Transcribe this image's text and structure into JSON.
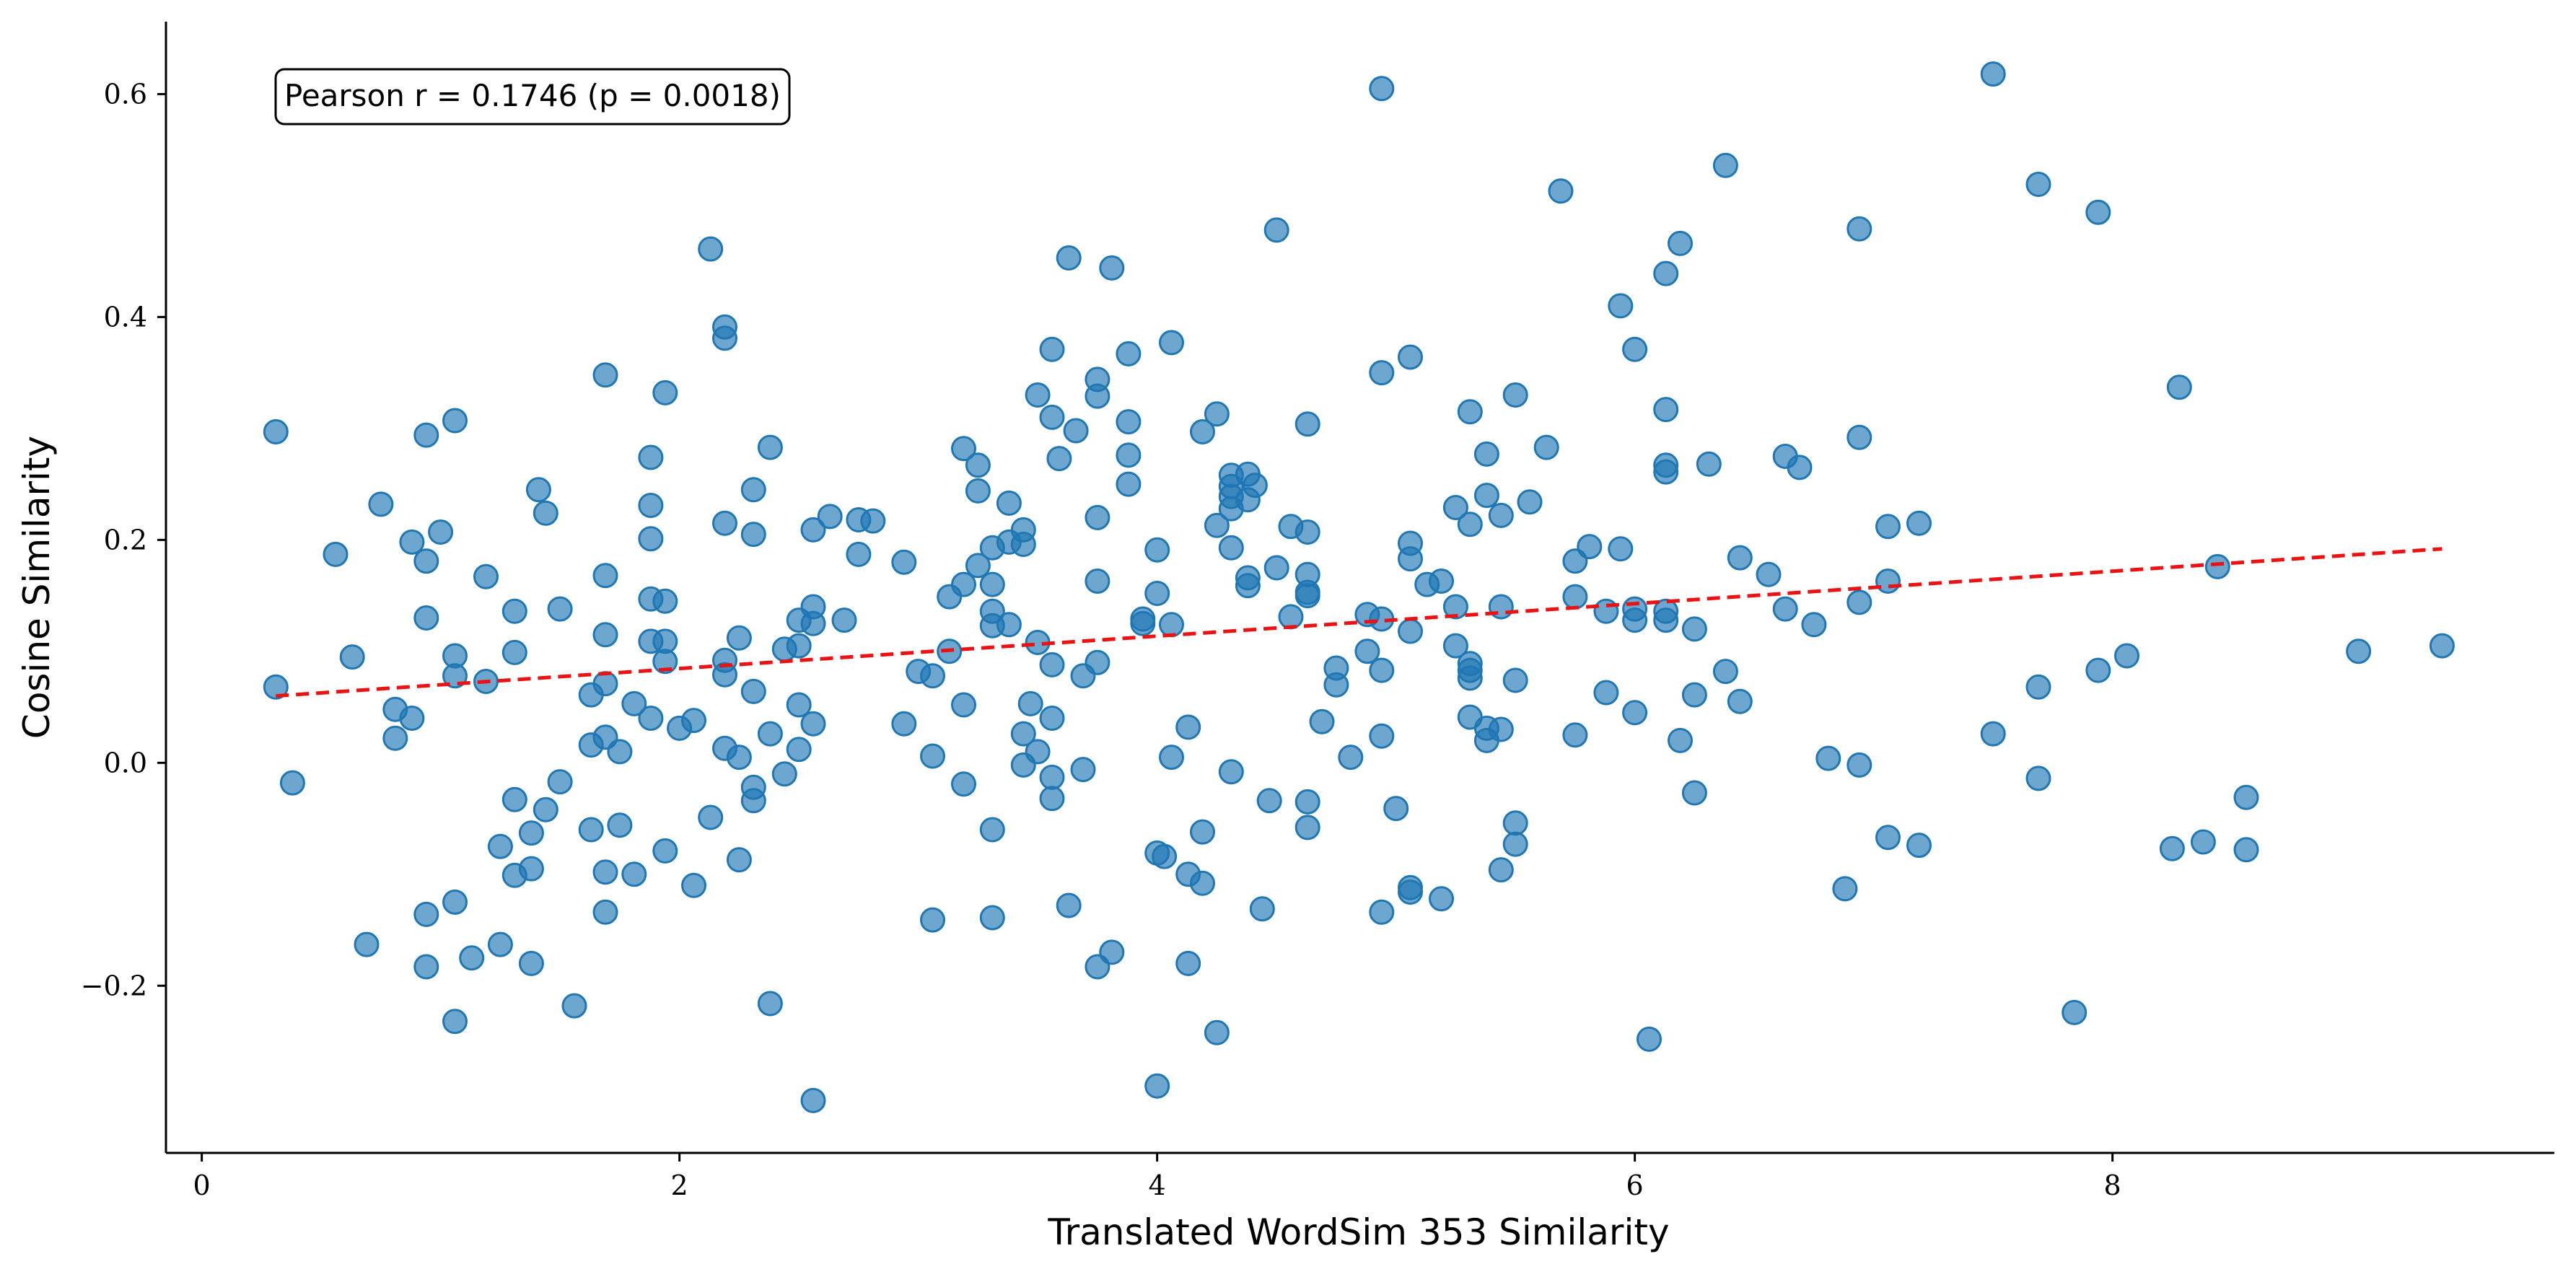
{
  "chart_data": {
    "type": "scatter",
    "xlabel": "Translated WordSim 353 Similarity",
    "ylabel": "Cosine Similarity",
    "xlim": [
      -0.15,
      9.85
    ],
    "ylim": [
      -0.35,
      0.665
    ],
    "x_ticks": [
      0,
      2,
      4,
      6,
      8
    ],
    "x_tick_labels": [
      "0",
      "2",
      "4",
      "6",
      "8"
    ],
    "y_ticks": [
      -0.2,
      0.0,
      0.2,
      0.4,
      0.6
    ],
    "y_tick_labels": [
      "−0.2",
      "0.0",
      "0.2",
      "0.4",
      "0.6"
    ],
    "grid": false,
    "annotation": "Pearson r = 0.1746 (p = 0.0018)",
    "point_color": "#1f77b4",
    "point_opacity": 0.65,
    "trend_color": "#ee1111",
    "trend_line": {
      "x": [
        0.31,
        9.38
      ],
      "y": [
        0.06,
        0.192
      ]
    },
    "points": [
      [
        0.31,
        0.297
      ],
      [
        0.31,
        0.068
      ],
      [
        0.38,
        -0.018
      ],
      [
        0.56,
        0.187
      ],
      [
        0.63,
        0.095
      ],
      [
        0.69,
        -0.163
      ],
      [
        0.75,
        0.232
      ],
      [
        0.81,
        0.048
      ],
      [
        0.81,
        0.022
      ],
      [
        0.88,
        0.198
      ],
      [
        0.88,
        0.04
      ],
      [
        0.94,
        0.294
      ],
      [
        0.94,
        0.181
      ],
      [
        0.94,
        0.13
      ],
      [
        0.94,
        -0.136
      ],
      [
        0.94,
        -0.183
      ],
      [
        1.0,
        0.207
      ],
      [
        1.06,
        0.307
      ],
      [
        1.06,
        0.096
      ],
      [
        1.06,
        0.078
      ],
      [
        1.06,
        -0.125
      ],
      [
        1.06,
        -0.232
      ],
      [
        1.13,
        -0.175
      ],
      [
        1.19,
        0.167
      ],
      [
        1.19,
        0.073
      ],
      [
        1.25,
        -0.075
      ],
      [
        1.25,
        -0.163
      ],
      [
        1.31,
        0.136
      ],
      [
        1.31,
        0.099
      ],
      [
        1.31,
        -0.033
      ],
      [
        1.31,
        -0.101
      ],
      [
        1.38,
        -0.063
      ],
      [
        1.38,
        -0.095
      ],
      [
        1.38,
        -0.18
      ],
      [
        1.41,
        0.245
      ],
      [
        1.44,
        0.224
      ],
      [
        1.44,
        -0.042
      ],
      [
        1.5,
        0.138
      ],
      [
        1.5,
        -0.017
      ],
      [
        1.56,
        -0.218
      ],
      [
        1.63,
        0.061
      ],
      [
        1.63,
        0.016
      ],
      [
        1.63,
        -0.06
      ],
      [
        1.69,
        0.348
      ],
      [
        1.69,
        0.168
      ],
      [
        1.69,
        0.115
      ],
      [
        1.69,
        0.071
      ],
      [
        1.69,
        0.023
      ],
      [
        1.69,
        -0.098
      ],
      [
        1.69,
        -0.134
      ],
      [
        1.75,
        0.01
      ],
      [
        1.75,
        -0.056
      ],
      [
        1.81,
        0.053
      ],
      [
        1.81,
        -0.1
      ],
      [
        1.88,
        0.274
      ],
      [
        1.88,
        0.231
      ],
      [
        1.88,
        0.201
      ],
      [
        1.88,
        0.147
      ],
      [
        1.88,
        0.109
      ],
      [
        1.88,
        0.04
      ],
      [
        1.94,
        0.332
      ],
      [
        1.94,
        0.145
      ],
      [
        1.94,
        0.109
      ],
      [
        1.94,
        0.091
      ],
      [
        1.94,
        -0.079
      ],
      [
        2.0,
        0.031
      ],
      [
        2.06,
        0.038
      ],
      [
        2.06,
        -0.11
      ],
      [
        2.13,
        0.461
      ],
      [
        2.13,
        -0.049
      ],
      [
        2.19,
        0.391
      ],
      [
        2.19,
        0.381
      ],
      [
        2.19,
        0.215
      ],
      [
        2.19,
        0.092
      ],
      [
        2.19,
        0.079
      ],
      [
        2.19,
        0.013
      ],
      [
        2.25,
        0.112
      ],
      [
        2.25,
        0.005
      ],
      [
        2.25,
        -0.087
      ],
      [
        2.31,
        0.245
      ],
      [
        2.31,
        0.205
      ],
      [
        2.31,
        0.064
      ],
      [
        2.31,
        -0.022
      ],
      [
        2.31,
        -0.034
      ],
      [
        2.38,
        0.283
      ],
      [
        2.38,
        0.026
      ],
      [
        2.38,
        -0.216
      ],
      [
        2.44,
        0.102
      ],
      [
        2.44,
        -0.01
      ],
      [
        2.5,
        0.128
      ],
      [
        2.5,
        0.105
      ],
      [
        2.5,
        0.052
      ],
      [
        2.5,
        0.012
      ],
      [
        2.56,
        0.209
      ],
      [
        2.56,
        0.14
      ],
      [
        2.56,
        0.125
      ],
      [
        2.56,
        0.035
      ],
      [
        2.56,
        -0.303
      ],
      [
        2.63,
        0.221
      ],
      [
        2.69,
        0.128
      ],
      [
        2.75,
        0.218
      ],
      [
        2.75,
        0.187
      ],
      [
        2.81,
        0.217
      ],
      [
        2.94,
        0.18
      ],
      [
        2.94,
        0.035
      ],
      [
        3.0,
        0.082
      ],
      [
        3.06,
        0.078
      ],
      [
        3.06,
        0.006
      ],
      [
        3.06,
        -0.141
      ],
      [
        3.13,
        0.149
      ],
      [
        3.13,
        0.1
      ],
      [
        3.19,
        0.282
      ],
      [
        3.19,
        0.16
      ],
      [
        3.19,
        0.052
      ],
      [
        3.19,
        -0.019
      ],
      [
        3.25,
        0.267
      ],
      [
        3.25,
        0.244
      ],
      [
        3.25,
        0.177
      ],
      [
        3.31,
        0.193
      ],
      [
        3.31,
        0.16
      ],
      [
        3.31,
        0.136
      ],
      [
        3.31,
        0.123
      ],
      [
        3.31,
        -0.06
      ],
      [
        3.31,
        -0.139
      ],
      [
        3.38,
        0.233
      ],
      [
        3.38,
        0.198
      ],
      [
        3.38,
        0.124
      ],
      [
        3.44,
        0.209
      ],
      [
        3.44,
        0.196
      ],
      [
        3.44,
        0.026
      ],
      [
        3.44,
        -0.002
      ],
      [
        3.47,
        0.053
      ],
      [
        3.5,
        0.33
      ],
      [
        3.5,
        0.108
      ],
      [
        3.5,
        0.01
      ],
      [
        3.56,
        0.371
      ],
      [
        3.56,
        0.31
      ],
      [
        3.56,
        0.088
      ],
      [
        3.56,
        0.04
      ],
      [
        3.56,
        -0.013
      ],
      [
        3.56,
        -0.032
      ],
      [
        3.59,
        0.273
      ],
      [
        3.63,
        0.453
      ],
      [
        3.63,
        -0.128
      ],
      [
        3.66,
        0.298
      ],
      [
        3.69,
        0.078
      ],
      [
        3.69,
        -0.006
      ],
      [
        3.75,
        0.344
      ],
      [
        3.75,
        0.329
      ],
      [
        3.75,
        0.22
      ],
      [
        3.75,
        0.163
      ],
      [
        3.75,
        0.09
      ],
      [
        3.75,
        -0.183
      ],
      [
        3.81,
        0.444
      ],
      [
        3.81,
        -0.17
      ],
      [
        3.88,
        0.367
      ],
      [
        3.88,
        0.306
      ],
      [
        3.88,
        0.276
      ],
      [
        3.88,
        0.25
      ],
      [
        3.94,
        0.129
      ],
      [
        3.94,
        0.125
      ],
      [
        4.0,
        0.191
      ],
      [
        4.0,
        0.152
      ],
      [
        4.0,
        -0.081
      ],
      [
        4.0,
        -0.29
      ],
      [
        4.03,
        -0.084
      ],
      [
        4.06,
        0.377
      ],
      [
        4.06,
        0.124
      ],
      [
        4.06,
        0.005
      ],
      [
        4.13,
        0.032
      ],
      [
        4.13,
        -0.1
      ],
      [
        4.13,
        -0.18
      ],
      [
        4.19,
        0.297
      ],
      [
        4.19,
        -0.062
      ],
      [
        4.19,
        -0.108
      ],
      [
        4.25,
        0.313
      ],
      [
        4.25,
        0.213
      ],
      [
        4.25,
        -0.242
      ],
      [
        4.31,
        0.258
      ],
      [
        4.31,
        0.248
      ],
      [
        4.31,
        0.239
      ],
      [
        4.31,
        0.228
      ],
      [
        4.31,
        0.193
      ],
      [
        4.31,
        -0.008
      ],
      [
        4.38,
        0.259
      ],
      [
        4.38,
        0.236
      ],
      [
        4.38,
        0.166
      ],
      [
        4.38,
        0.159
      ],
      [
        4.41,
        0.249
      ],
      [
        4.44,
        -0.131
      ],
      [
        4.47,
        -0.034
      ],
      [
        4.5,
        0.478
      ],
      [
        4.5,
        0.175
      ],
      [
        4.56,
        0.212
      ],
      [
        4.56,
        0.131
      ],
      [
        4.63,
        0.304
      ],
      [
        4.63,
        0.207
      ],
      [
        4.63,
        0.169
      ],
      [
        4.63,
        0.153
      ],
      [
        4.63,
        0.15
      ],
      [
        4.63,
        -0.035
      ],
      [
        4.63,
        -0.058
      ],
      [
        4.69,
        0.037
      ],
      [
        4.75,
        0.085
      ],
      [
        4.75,
        0.07
      ],
      [
        4.81,
        0.005
      ],
      [
        4.88,
        0.133
      ],
      [
        4.88,
        0.1
      ],
      [
        4.94,
        0.605
      ],
      [
        4.94,
        0.35
      ],
      [
        4.94,
        0.129
      ],
      [
        4.94,
        0.083
      ],
      [
        4.94,
        0.024
      ],
      [
        4.94,
        -0.134
      ],
      [
        5.0,
        -0.041
      ],
      [
        5.06,
        0.364
      ],
      [
        5.06,
        0.197
      ],
      [
        5.06,
        0.183
      ],
      [
        5.06,
        0.118
      ],
      [
        5.06,
        -0.112
      ],
      [
        5.06,
        -0.116
      ],
      [
        5.13,
        0.16
      ],
      [
        5.19,
        0.163
      ],
      [
        5.19,
        -0.122
      ],
      [
        5.25,
        0.229
      ],
      [
        5.25,
        0.14
      ],
      [
        5.25,
        0.105
      ],
      [
        5.31,
        0.315
      ],
      [
        5.31,
        0.214
      ],
      [
        5.31,
        0.089
      ],
      [
        5.31,
        0.083
      ],
      [
        5.31,
        0.076
      ],
      [
        5.31,
        0.041
      ],
      [
        5.38,
        0.277
      ],
      [
        5.38,
        0.24
      ],
      [
        5.38,
        0.031
      ],
      [
        5.38,
        0.02
      ],
      [
        5.44,
        0.222
      ],
      [
        5.44,
        0.14
      ],
      [
        5.44,
        0.03
      ],
      [
        5.44,
        -0.096
      ],
      [
        5.5,
        0.33
      ],
      [
        5.5,
        0.074
      ],
      [
        5.5,
        -0.054
      ],
      [
        5.5,
        -0.073
      ],
      [
        5.56,
        0.234
      ],
      [
        5.63,
        0.283
      ],
      [
        5.69,
        0.513
      ],
      [
        5.75,
        0.181
      ],
      [
        5.75,
        0.149
      ],
      [
        5.75,
        0.025
      ],
      [
        5.81,
        0.194
      ],
      [
        5.88,
        0.136
      ],
      [
        5.88,
        0.063
      ],
      [
        5.94,
        0.41
      ],
      [
        5.94,
        0.192
      ],
      [
        6.0,
        0.371
      ],
      [
        6.0,
        0.138
      ],
      [
        6.0,
        0.128
      ],
      [
        6.0,
        0.045
      ],
      [
        6.06,
        -0.248
      ],
      [
        6.13,
        0.439
      ],
      [
        6.13,
        0.317
      ],
      [
        6.13,
        0.267
      ],
      [
        6.13,
        0.261
      ],
      [
        6.13,
        0.136
      ],
      [
        6.13,
        0.128
      ],
      [
        6.19,
        0.466
      ],
      [
        6.19,
        0.02
      ],
      [
        6.25,
        0.12
      ],
      [
        6.25,
        0.061
      ],
      [
        6.25,
        -0.027
      ],
      [
        6.31,
        0.268
      ],
      [
        6.38,
        0.536
      ],
      [
        6.38,
        0.082
      ],
      [
        6.44,
        0.184
      ],
      [
        6.44,
        0.055
      ],
      [
        6.56,
        0.169
      ],
      [
        6.63,
        0.275
      ],
      [
        6.63,
        0.138
      ],
      [
        6.69,
        0.265
      ],
      [
        6.75,
        0.124
      ],
      [
        6.81,
        0.004
      ],
      [
        6.88,
        -0.113
      ],
      [
        6.94,
        0.479
      ],
      [
        6.94,
        0.292
      ],
      [
        6.94,
        0.144
      ],
      [
        6.94,
        -0.002
      ],
      [
        7.06,
        0.212
      ],
      [
        7.06,
        0.163
      ],
      [
        7.06,
        -0.067
      ],
      [
        7.19,
        0.215
      ],
      [
        7.19,
        -0.074
      ],
      [
        7.5,
        0.618
      ],
      [
        7.5,
        0.026
      ],
      [
        7.69,
        0.519
      ],
      [
        7.69,
        0.068
      ],
      [
        7.69,
        -0.014
      ],
      [
        7.84,
        -0.224
      ],
      [
        7.94,
        0.494
      ],
      [
        7.94,
        0.083
      ],
      [
        8.06,
        0.096
      ],
      [
        8.25,
        -0.077
      ],
      [
        8.28,
        0.337
      ],
      [
        8.38,
        -0.071
      ],
      [
        8.44,
        0.176
      ],
      [
        8.56,
        -0.031
      ],
      [
        8.56,
        -0.078
      ],
      [
        9.03,
        0.1
      ],
      [
        9.38,
        0.105
      ]
    ]
  }
}
